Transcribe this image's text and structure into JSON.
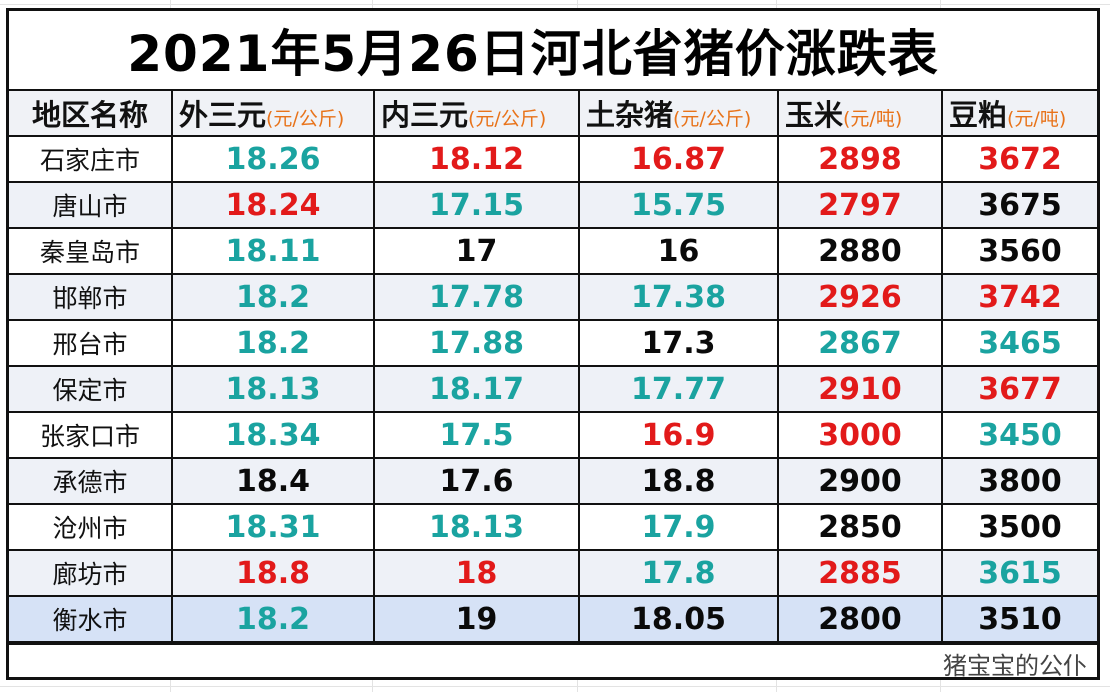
{
  "title": "2021年5月26日河北省猪价涨跌表",
  "colors": {
    "up": "#e21a1a",
    "down": "#1aa3a0",
    "flat": "#0a0a0a",
    "unit": "#e8731a",
    "header_bg": "#f0f2f6",
    "alt_row_bg": "#eef1f7",
    "highlight_row_bg": "#d6e2f6"
  },
  "columns": [
    {
      "label": "地区名称",
      "unit": ""
    },
    {
      "label": "外三元",
      "unit": "(元/公斤)"
    },
    {
      "label": "内三元",
      "unit": "(元/公斤)"
    },
    {
      "label": "土杂猪",
      "unit": "(元/公斤)"
    },
    {
      "label": "玉米",
      "unit": "(元/吨)"
    },
    {
      "label": "豆粕",
      "unit": "(元/吨)"
    }
  ],
  "rows": [
    {
      "city": "石家庄市",
      "cells": [
        {
          "value": "18.26",
          "trend": "down"
        },
        {
          "value": "18.12",
          "trend": "up"
        },
        {
          "value": "16.87",
          "trend": "up"
        },
        {
          "value": "2898",
          "trend": "up"
        },
        {
          "value": "3672",
          "trend": "up"
        }
      ]
    },
    {
      "city": "唐山市",
      "cells": [
        {
          "value": "18.24",
          "trend": "up"
        },
        {
          "value": "17.15",
          "trend": "down"
        },
        {
          "value": "15.75",
          "trend": "down"
        },
        {
          "value": "2797",
          "trend": "up"
        },
        {
          "value": "3675",
          "trend": "flat"
        }
      ]
    },
    {
      "city": "秦皇岛市",
      "cells": [
        {
          "value": "18.11",
          "trend": "down"
        },
        {
          "value": "17",
          "trend": "flat"
        },
        {
          "value": "16",
          "trend": "flat"
        },
        {
          "value": "2880",
          "trend": "flat"
        },
        {
          "value": "3560",
          "trend": "flat"
        }
      ]
    },
    {
      "city": "邯郸市",
      "cells": [
        {
          "value": "18.2",
          "trend": "down"
        },
        {
          "value": "17.78",
          "trend": "down"
        },
        {
          "value": "17.38",
          "trend": "down"
        },
        {
          "value": "2926",
          "trend": "up"
        },
        {
          "value": "3742",
          "trend": "up"
        }
      ]
    },
    {
      "city": "邢台市",
      "cells": [
        {
          "value": "18.2",
          "trend": "down"
        },
        {
          "value": "17.88",
          "trend": "down"
        },
        {
          "value": "17.3",
          "trend": "flat"
        },
        {
          "value": "2867",
          "trend": "down"
        },
        {
          "value": "3465",
          "trend": "down"
        }
      ]
    },
    {
      "city": "保定市",
      "cells": [
        {
          "value": "18.13",
          "trend": "down"
        },
        {
          "value": "18.17",
          "trend": "down"
        },
        {
          "value": "17.77",
          "trend": "down"
        },
        {
          "value": "2910",
          "trend": "up"
        },
        {
          "value": "3677",
          "trend": "up"
        }
      ]
    },
    {
      "city": "张家口市",
      "cells": [
        {
          "value": "18.34",
          "trend": "down"
        },
        {
          "value": "17.5",
          "trend": "down"
        },
        {
          "value": "16.9",
          "trend": "up"
        },
        {
          "value": "3000",
          "trend": "up"
        },
        {
          "value": "3450",
          "trend": "down"
        }
      ]
    },
    {
      "city": "承德市",
      "cells": [
        {
          "value": "18.4",
          "trend": "flat"
        },
        {
          "value": "17.6",
          "trend": "flat"
        },
        {
          "value": "18.8",
          "trend": "flat"
        },
        {
          "value": "2900",
          "trend": "flat"
        },
        {
          "value": "3800",
          "trend": "flat"
        }
      ]
    },
    {
      "city": "沧州市",
      "cells": [
        {
          "value": "18.31",
          "trend": "down"
        },
        {
          "value": "18.13",
          "trend": "down"
        },
        {
          "value": "17.9",
          "trend": "down"
        },
        {
          "value": "2850",
          "trend": "flat"
        },
        {
          "value": "3500",
          "trend": "flat"
        }
      ]
    },
    {
      "city": "廊坊市",
      "cells": [
        {
          "value": "18.8",
          "trend": "up"
        },
        {
          "value": "18",
          "trend": "up"
        },
        {
          "value": "17.8",
          "trend": "down"
        },
        {
          "value": "2885",
          "trend": "up"
        },
        {
          "value": "3615",
          "trend": "down"
        }
      ]
    },
    {
      "city": "衡水市",
      "cells": [
        {
          "value": "18.2",
          "trend": "down"
        },
        {
          "value": "19",
          "trend": "flat"
        },
        {
          "value": "18.05",
          "trend": "flat"
        },
        {
          "value": "2800",
          "trend": "flat"
        },
        {
          "value": "3510",
          "trend": "flat"
        }
      ]
    }
  ],
  "footer": {
    "watermark": "猪宝宝的公仆"
  }
}
